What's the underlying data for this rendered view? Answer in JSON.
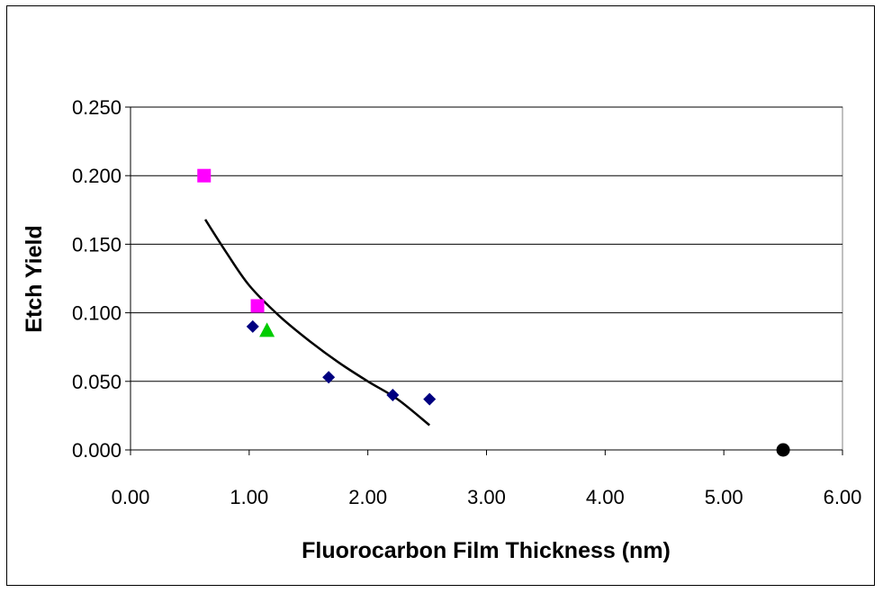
{
  "chart_data": {
    "type": "scatter",
    "title": "",
    "xlabel": "Fluorocarbon Film Thickness (nm)",
    "ylabel": "Etch Yield",
    "xlim": [
      0,
      6
    ],
    "ylim": [
      0,
      0.25
    ],
    "x_ticks": [
      "0.00",
      "1.00",
      "2.00",
      "3.00",
      "4.00",
      "5.00",
      "6.00"
    ],
    "y_ticks": [
      "0.000",
      "0.050",
      "0.100",
      "0.150",
      "0.200",
      "0.250"
    ],
    "grid": "horizontal",
    "legend": "none",
    "series": [
      {
        "marker": "diamond",
        "color": "#000080",
        "points": [
          [
            1.03,
            0.09
          ],
          [
            1.67,
            0.053
          ],
          [
            2.21,
            0.04
          ],
          [
            2.52,
            0.037
          ]
        ]
      },
      {
        "marker": "square",
        "color": "#ff00ff",
        "points": [
          [
            0.62,
            0.2
          ],
          [
            1.07,
            0.105
          ]
        ]
      },
      {
        "marker": "triangle",
        "color": "#00cc00",
        "points": [
          [
            1.15,
            0.087
          ]
        ]
      },
      {
        "marker": "circle",
        "color": "#000000",
        "points": [
          [
            5.5,
            0.0
          ]
        ]
      }
    ],
    "trendline": {
      "type": "fit curve",
      "color": "#000000",
      "points": [
        [
          0.63,
          0.168
        ],
        [
          0.8,
          0.145
        ],
        [
          1.0,
          0.12
        ],
        [
          1.25,
          0.098
        ],
        [
          1.5,
          0.08
        ],
        [
          1.75,
          0.064
        ],
        [
          2.0,
          0.05
        ],
        [
          2.25,
          0.037
        ],
        [
          2.52,
          0.018
        ]
      ]
    }
  }
}
